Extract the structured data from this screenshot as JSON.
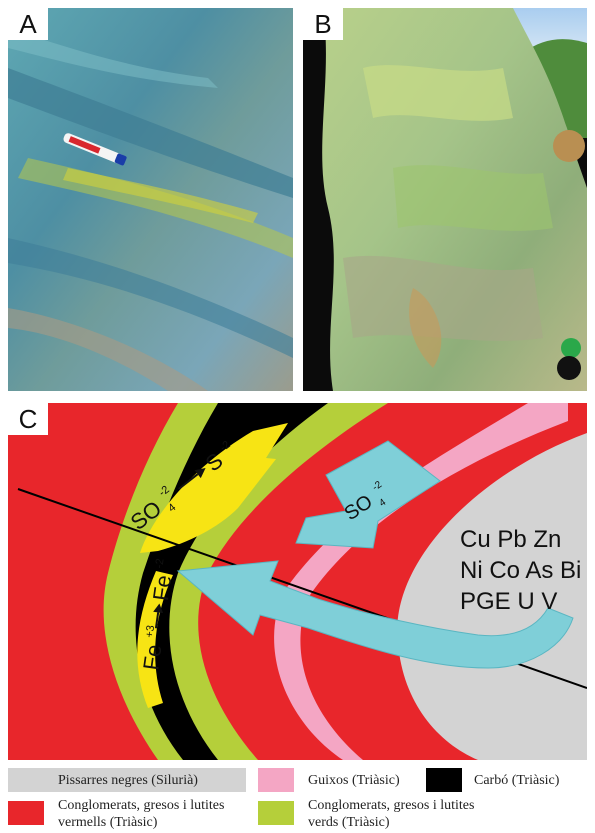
{
  "panels": {
    "a": {
      "label": "A"
    },
    "b": {
      "label": "B"
    },
    "c": {
      "label": "C"
    }
  },
  "diagram": {
    "reaction_sulfate": "SO",
    "reaction_sulfate_sub": "4",
    "reaction_sulfate_sup": "-2",
    "reaction_sulfide": "S",
    "reaction_sulfide_sup": "-2",
    "reaction_iron_ox": "Fe",
    "reaction_iron_ox_sup": "+3",
    "reaction_iron_red": "Fe",
    "reaction_iron_red_sup": "-2",
    "arrow_sulfate": "SO",
    "arrow_sulfate_sub": "4",
    "arrow_sulfate_sup": "-2",
    "metals_line1": "Cu Pb Zn",
    "metals_line2": "Ni Co As Bi",
    "metals_line3": "PGE U V"
  },
  "legend": {
    "items": [
      {
        "label": "Pissarres negres (Silurià)",
        "color": "#d3d3d3"
      },
      {
        "label": "Guixos (Triàsic)",
        "color": "#f4a6c4"
      },
      {
        "label": "Carbó (Triàsic)",
        "color": "#000000"
      },
      {
        "label_line1": "Conglomerats, gresos i lutites",
        "label_line2": "vermells (Triàsic)",
        "color": "#e8262b"
      },
      {
        "label_line1": "Conglomerats, gresos i lutites",
        "label_line2": "verds (Triàsic)",
        "color": "#b5cf3a"
      }
    ]
  },
  "colors": {
    "red": "#e8262b",
    "green": "#b5cf3a",
    "pink": "#f4a6c4",
    "grey": "#d3d3d3",
    "black": "#000000",
    "yellow": "#f7e414",
    "cyan": "#7fcfd8"
  }
}
